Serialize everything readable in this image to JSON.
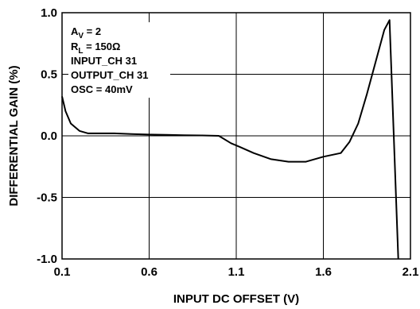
{
  "chart_data": {
    "type": "line",
    "title": "",
    "xlabel": "INPUT DC OFFSET (V)",
    "ylabel": "DIFFERENTIAL GAIN (%)",
    "xlim": [
      0.1,
      2.1
    ],
    "ylim": [
      -1.0,
      1.0
    ],
    "x_ticks": [
      "0.1",
      "0.6",
      "1.1",
      "1.6",
      "2.1"
    ],
    "y_ticks": [
      "1.0",
      "0.5",
      "0.0",
      "-0.5",
      "-1.0"
    ],
    "grid": true,
    "annotations": {
      "av": {
        "main": "A",
        "sub": "V",
        "rest": " = 2"
      },
      "rl": {
        "main": "R",
        "sub": "L",
        "rest": " = 150Ω"
      },
      "input": "INPUT_CH 31",
      "output": "OUTPUT_CH 31",
      "osc": "OSC = 40mV"
    },
    "series": [
      {
        "color": "#000000",
        "x": [
          0.1,
          0.12,
          0.15,
          0.2,
          0.25,
          0.3,
          0.4,
          0.5,
          0.6,
          0.7,
          0.8,
          0.9,
          1.0,
          1.07,
          1.12,
          1.2,
          1.3,
          1.4,
          1.5,
          1.6,
          1.7,
          1.75,
          1.8,
          1.85,
          1.9,
          1.95,
          1.98,
          2.03
        ],
        "y": [
          0.32,
          0.2,
          0.1,
          0.04,
          0.02,
          0.02,
          0.02,
          0.015,
          0.01,
          0.008,
          0.005,
          0.003,
          0.0,
          -0.06,
          -0.09,
          -0.14,
          -0.19,
          -0.21,
          -0.21,
          -0.17,
          -0.14,
          -0.05,
          0.1,
          0.34,
          0.6,
          0.86,
          0.94,
          -1.0
        ]
      }
    ]
  }
}
